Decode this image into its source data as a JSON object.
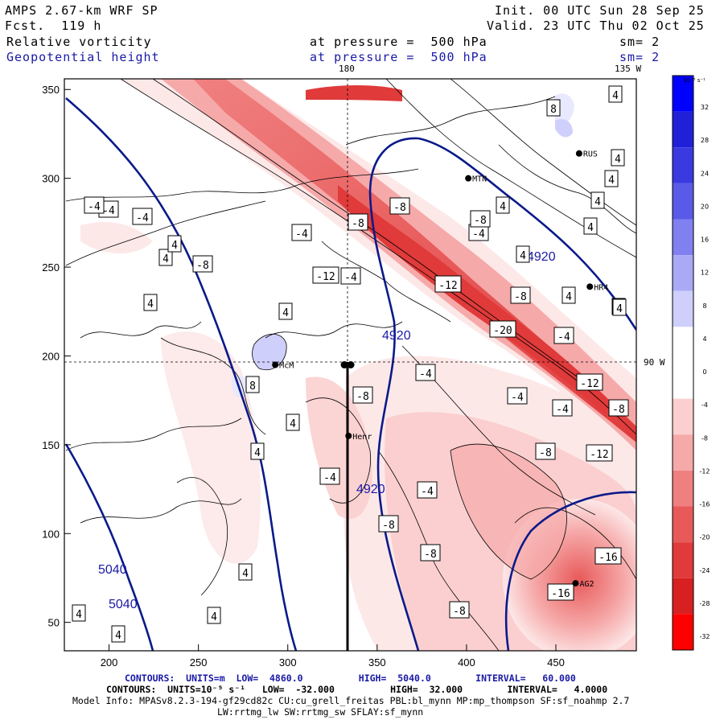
{
  "header": {
    "model": "AMPS 2.67-km WRF SP",
    "forecast": "Fcst.  119 h",
    "init": "Init. 00 UTC Sun 28 Sep 25",
    "valid": "Valid. 23 UTC Thu 02 Oct 25",
    "field1_name": "Relative vorticity",
    "field1_level": "at pressure =  500 hPa",
    "field1_sm": "sm= 2",
    "field2_name": "Geopotential height",
    "field2_level": "at pressure =  500 hPa",
    "field2_sm": "sm= 2",
    "lon_180": "180",
    "lon_135w": "135 W",
    "lat_90w": "90 W"
  },
  "footer": {
    "line1": "CONTOURS:  UNITS=m  LOW=  4860.0          HIGH=  5040.0        INTERVAL=   60.000",
    "line2": "CONTOURS:  UNITS=10⁻⁵ s⁻¹   LOW=  -32.000          HIGH=  32.000        INTERVAL=   4.0000",
    "line3": "Model Info: MPASv8.2.3-194-gf29cd82c CU:cu_grell_freitas PBL:bl_mynn MP:mp_thompson SF:sf_noahmp 2.7",
    "line4": "LW:rrtmg_lw SW:rrtmg_sw SFLAY:sf_mynn"
  },
  "colors": {
    "neg_scale": [
      "#fde8e8",
      "#fbcfcf",
      "#f6a9a9",
      "#f08080",
      "#e85a5a",
      "#e03a3a",
      "#d92020",
      "#ff0000"
    ],
    "pos_scale": [
      "#e8e8fe",
      "#cfcffb",
      "#a9a9f6",
      "#8080f0",
      "#5a5ae8",
      "#3a3ae0",
      "#2020d9",
      "#0000ff"
    ],
    "height_line": "#0a1a8a"
  },
  "chart_data": {
    "type": "contour-map",
    "title": "Relative vorticity (shaded, 10^-5 s^-1) and Geopotential height (contours, m) at 500 hPa",
    "x_ticks": [
      "200",
      "250",
      "300",
      "350",
      "400",
      "450"
    ],
    "y_ticks": [
      "350",
      "300",
      "250",
      "200",
      "150",
      "100",
      "50"
    ],
    "xlim": [
      175,
      495
    ],
    "ylim": [
      34,
      356
    ],
    "colorbar": {
      "unit_label": "10⁻⁵ s⁻¹",
      "ticks": [
        "32",
        "28",
        "24",
        "20",
        "16",
        "12",
        "8",
        "4",
        "0",
        "-4",
        "-8",
        "-12",
        "-16",
        "-20",
        "-24",
        "-28",
        "-32"
      ]
    },
    "height_contours": {
      "low": 4860,
      "high": 5040,
      "interval": 60,
      "labels": [
        "4920",
        "4920",
        "4920",
        "5040",
        "5040"
      ]
    },
    "vorticity_contours": {
      "low": -32,
      "high": 32,
      "interval": 4
    },
    "stations": [
      {
        "name": "McM",
        "x": 293,
        "y": 195
      },
      {
        "name": "Henr",
        "x": 334,
        "y": 155
      },
      {
        "name": "AG2",
        "x": 461,
        "y": 72
      },
      {
        "name": "HR4",
        "x": 469,
        "y": 239
      },
      {
        "name": "RUS",
        "x": 463,
        "y": 314
      },
      {
        "name": "MTN",
        "x": 401,
        "y": 300
      }
    ],
    "cross_point": {
      "x": 333,
      "y": 195
    },
    "contour_labels": [
      {
        "text": "-12",
        "x": 405,
        "y": 343
      },
      {
        "text": "-4",
        "x": 436,
        "y": 344
      },
      {
        "text": "-8",
        "x": 252,
        "y": 329
      },
      {
        "text": "4",
        "x": 206,
        "y": 321
      },
      {
        "text": "4",
        "x": 217,
        "y": 304
      },
      {
        "text": "-4",
        "x": 375,
        "y": 290
      },
      {
        "text": "-4",
        "x": 177,
        "y": 270
      },
      {
        "text": "-4",
        "x": 135,
        "y": 261
      },
      {
        "text": "-4",
        "x": 117,
        "y": 256
      },
      {
        "text": "-8",
        "x": 445,
        "y": 277
      },
      {
        "text": "-8",
        "x": 497,
        "y": 257
      },
      {
        "text": "-4",
        "x": 595,
        "y": 290
      },
      {
        "text": "-8",
        "x": 597,
        "y": 273
      },
      {
        "text": "4",
        "x": 650,
        "y": 317
      },
      {
        "text": "-12",
        "x": 557,
        "y": 354
      },
      {
        "text": "-8",
        "x": 647,
        "y": 368
      },
      {
        "text": "4",
        "x": 707,
        "y": 368
      },
      {
        "text": "4",
        "x": 769,
        "y": 382
      },
      {
        "text": "4",
        "x": 187,
        "y": 377
      },
      {
        "text": "4",
        "x": 355,
        "y": 388
      },
      {
        "text": "-20",
        "x": 625,
        "y": 410
      },
      {
        "text": "-4",
        "x": 701,
        "y": 418
      },
      {
        "text": "-4",
        "x": 529,
        "y": 464
      },
      {
        "text": "-8",
        "x": 451,
        "y": 492
      },
      {
        "text": "8",
        "x": 314,
        "y": 479
      },
      {
        "text": "-4",
        "x": 643,
        "y": 493
      },
      {
        "text": "-12",
        "x": 733,
        "y": 476
      },
      {
        "text": "-4",
        "x": 699,
        "y": 508
      },
      {
        "text": "-8",
        "x": 769,
        "y": 508
      },
      {
        "text": "4",
        "x": 364,
        "y": 526
      },
      {
        "text": "4",
        "x": 320,
        "y": 562
      },
      {
        "text": "-8",
        "x": 678,
        "y": 562
      },
      {
        "text": "-12",
        "x": 745,
        "y": 564
      },
      {
        "text": "-4",
        "x": 410,
        "y": 593
      },
      {
        "text": "-4",
        "x": 531,
        "y": 610
      },
      {
        "text": "-8",
        "x": 483,
        "y": 652
      },
      {
        "text": "-8",
        "x": 535,
        "y": 688
      },
      {
        "text": "-16",
        "x": 756,
        "y": 692
      },
      {
        "text": "4",
        "x": 305,
        "y": 712
      },
      {
        "text": "-16",
        "x": 697,
        "y": 737
      },
      {
        "text": "4",
        "x": 98,
        "y": 763
      },
      {
        "text": "4",
        "x": 266,
        "y": 766
      },
      {
        "text": "-8",
        "x": 571,
        "y": 759
      },
      {
        "text": "4",
        "x": 147,
        "y": 789
      },
      {
        "text": "4",
        "x": 765,
        "y": 118
      },
      {
        "text": "8",
        "x": 688,
        "y": 135
      },
      {
        "text": "4",
        "x": 768,
        "y": 197
      },
      {
        "text": "4",
        "x": 760,
        "y": 223
      },
      {
        "text": "4",
        "x": 743,
        "y": 250
      },
      {
        "text": "4",
        "x": 625,
        "y": 256
      },
      {
        "text": "4",
        "x": 734,
        "y": 282
      },
      {
        "text": "4",
        "x": 770,
        "y": 383
      }
    ]
  }
}
